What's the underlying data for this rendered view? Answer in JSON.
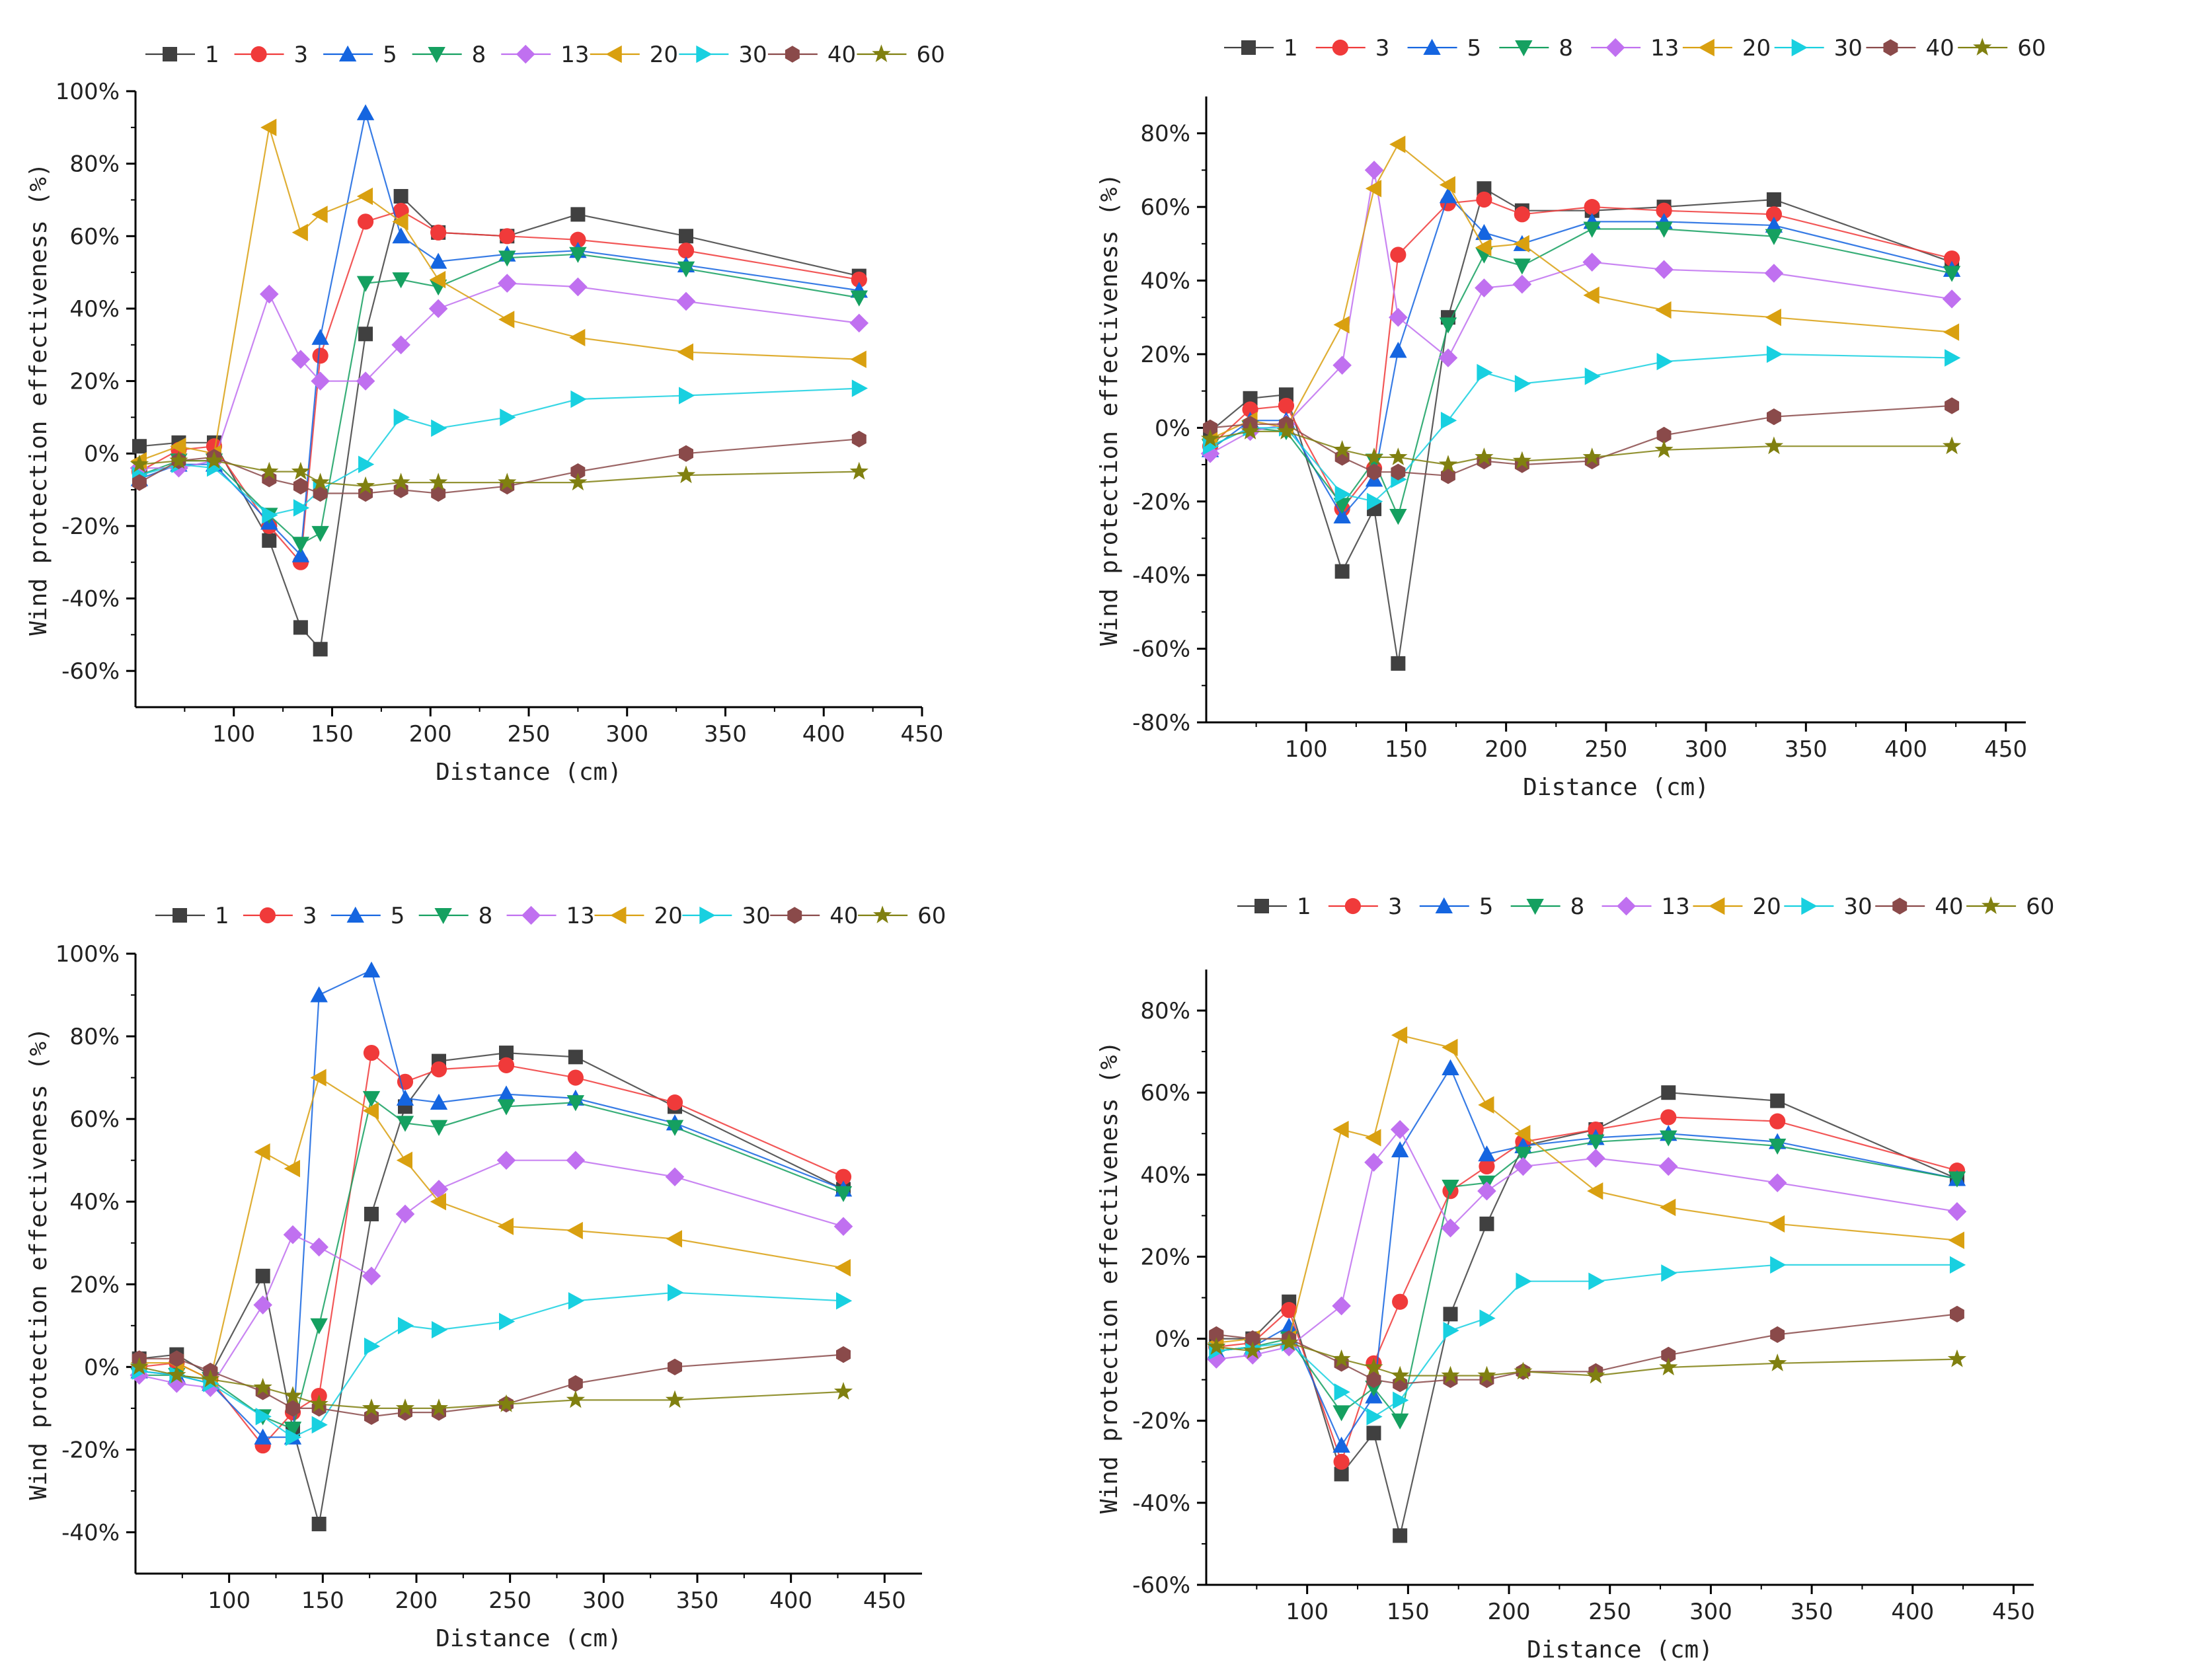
{
  "colors": {
    "1": "#404040",
    "3": "#f03a3a",
    "5": "#1565e0",
    "8": "#15a060",
    "13": "#c070f0",
    "20": "#d9a010",
    "30": "#18d0e0",
    "40": "#8a4a4a",
    "60": "#808010"
  },
  "chart_data": [
    {
      "type": "line",
      "xlabel": "Distance (cm)",
      "ylabel": "Wind protection effectiveness (%)",
      "xlim": [
        50,
        450
      ],
      "ylim": [
        -70,
        100
      ],
      "xticks": [
        100,
        150,
        200,
        250,
        300,
        350,
        400,
        450
      ],
      "yticks": [
        -60,
        -40,
        -20,
        0,
        20,
        40,
        60,
        80,
        100
      ],
      "ytick_labels": [
        "-60%",
        "-40%",
        "-20%",
        "0%",
        "20%",
        "40%",
        "60%",
        "80%",
        "100%"
      ],
      "x": [
        52,
        72,
        90,
        118,
        134,
        144,
        167,
        185,
        204,
        239,
        275,
        330,
        418
      ],
      "series": [
        {
          "name": "1",
          "marker": "square",
          "values": [
            2,
            3,
            3,
            -24,
            -48,
            -54,
            33,
            71,
            61,
            60,
            66,
            60,
            49
          ]
        },
        {
          "name": "3",
          "marker": "circle",
          "values": [
            -5,
            1,
            2,
            -20,
            -30,
            27,
            64,
            67,
            61,
            60,
            59,
            56,
            48
          ]
        },
        {
          "name": "5",
          "marker": "triangle-up",
          "values": [
            -7,
            -3,
            -3,
            -19,
            -28,
            32,
            94,
            60,
            53,
            55,
            56,
            52,
            45
          ]
        },
        {
          "name": "8",
          "marker": "triangle-down",
          "values": [
            -6,
            -2,
            -2,
            -17,
            -25,
            -22,
            47,
            48,
            46,
            54,
            55,
            51,
            43
          ]
        },
        {
          "name": "13",
          "marker": "diamond",
          "values": [
            -4,
            -4,
            -2,
            44,
            26,
            20,
            20,
            30,
            40,
            47,
            46,
            42,
            36
          ]
        },
        {
          "name": "20",
          "marker": "triangle-left",
          "values": [
            -2,
            2,
            0,
            90,
            61,
            66,
            71,
            64,
            48,
            37,
            32,
            28,
            26
          ]
        },
        {
          "name": "30",
          "marker": "triangle-right",
          "values": [
            -6,
            -3,
            -4,
            -17,
            -15,
            -10,
            -3,
            10,
            7,
            10,
            15,
            16,
            18
          ]
        },
        {
          "name": "40",
          "marker": "hexagon",
          "values": [
            -8,
            -2,
            -1,
            -7,
            -9,
            -11,
            -11,
            -10,
            -11,
            -9,
            -5,
            0,
            4
          ]
        },
        {
          "name": "60",
          "marker": "star",
          "values": [
            -3,
            -2,
            -2,
            -5,
            -5,
            -8,
            -9,
            -8,
            -8,
            -8,
            -8,
            -6,
            -5
          ]
        }
      ]
    },
    {
      "type": "line",
      "xlabel": "Distance (cm)",
      "ylabel": "Wind protection effectiveness (%)",
      "xlim": [
        50,
        460
      ],
      "ylim": [
        -80,
        90
      ],
      "xticks": [
        100,
        150,
        200,
        250,
        300,
        350,
        400,
        450
      ],
      "yticks": [
        -80,
        -60,
        -40,
        -20,
        0,
        20,
        40,
        60,
        80
      ],
      "ytick_labels": [
        "-80%",
        "-60%",
        "-40%",
        "-20%",
        "0%",
        "20%",
        "40%",
        "60%",
        "80%"
      ],
      "x": [
        52,
        72,
        90,
        118,
        134,
        146,
        171,
        189,
        208,
        243,
        279,
        334,
        423
      ],
      "series": [
        {
          "name": "1",
          "marker": "square",
          "values": [
            -1,
            8,
            9,
            -39,
            -22,
            -64,
            30,
            65,
            59,
            59,
            60,
            62,
            45
          ]
        },
        {
          "name": "3",
          "marker": "circle",
          "values": [
            -5,
            5,
            6,
            -22,
            -11,
            47,
            61,
            62,
            58,
            60,
            59,
            58,
            46
          ]
        },
        {
          "name": "5",
          "marker": "triangle-up",
          "values": [
            -6,
            2,
            2,
            -24,
            -14,
            21,
            63,
            53,
            50,
            56,
            56,
            55,
            43
          ]
        },
        {
          "name": "8",
          "marker": "triangle-down",
          "values": [
            -5,
            0,
            -1,
            -21,
            -9,
            -24,
            28,
            47,
            44,
            54,
            54,
            52,
            42
          ]
        },
        {
          "name": "13",
          "marker": "diamond",
          "values": [
            -7,
            -1,
            1,
            17,
            70,
            30,
            19,
            38,
            39,
            45,
            43,
            42,
            35
          ]
        },
        {
          "name": "20",
          "marker": "triangle-left",
          "values": [
            -3,
            2,
            0,
            28,
            65,
            77,
            66,
            49,
            50,
            36,
            32,
            30,
            26
          ]
        },
        {
          "name": "30",
          "marker": "triangle-right",
          "values": [
            -5,
            0,
            0,
            -18,
            -20,
            -14,
            2,
            15,
            12,
            14,
            18,
            20,
            19
          ]
        },
        {
          "name": "40",
          "marker": "hexagon",
          "values": [
            0,
            1,
            1,
            -8,
            -12,
            -12,
            -13,
            -9,
            -10,
            -9,
            -2,
            3,
            6
          ]
        },
        {
          "name": "60",
          "marker": "star",
          "values": [
            -3,
            -1,
            -1,
            -6,
            -8,
            -8,
            -10,
            -8,
            -9,
            -8,
            -6,
            -5,
            -5
          ]
        }
      ]
    },
    {
      "type": "line",
      "xlabel": "Distance (cm)",
      "ylabel": "Wind protection effectiveness (%)",
      "xlim": [
        50,
        470
      ],
      "ylim": [
        -50,
        100
      ],
      "xticks": [
        100,
        150,
        200,
        250,
        300,
        350,
        400,
        450
      ],
      "yticks": [
        -40,
        -20,
        0,
        20,
        40,
        60,
        80,
        100
      ],
      "ytick_labels": [
        "-40%",
        "-20%",
        "0%",
        "20%",
        "40%",
        "60%",
        "80%",
        "100%"
      ],
      "x": [
        52,
        72,
        90,
        118,
        134,
        148,
        176,
        194,
        212,
        248,
        285,
        338,
        428
      ],
      "series": [
        {
          "name": "1",
          "marker": "square",
          "values": [
            2,
            3,
            -2,
            22,
            -15,
            -38,
            37,
            63,
            74,
            76,
            75,
            63,
            43
          ]
        },
        {
          "name": "3",
          "marker": "circle",
          "values": [
            0,
            1,
            -3,
            -19,
            -11,
            -7,
            76,
            69,
            72,
            73,
            70,
            64,
            46
          ]
        },
        {
          "name": "5",
          "marker": "triangle-up",
          "values": [
            -1,
            -2,
            -4,
            -17,
            -17,
            90,
            96,
            65,
            64,
            66,
            65,
            59,
            43
          ]
        },
        {
          "name": "8",
          "marker": "triangle-down",
          "values": [
            -2,
            -2,
            -3,
            -12,
            -15,
            10,
            65,
            59,
            58,
            63,
            64,
            58,
            42
          ]
        },
        {
          "name": "13",
          "marker": "diamond",
          "values": [
            -2,
            -4,
            -5,
            15,
            32,
            29,
            22,
            37,
            43,
            50,
            50,
            46,
            34
          ]
        },
        {
          "name": "20",
          "marker": "triangle-left",
          "values": [
            1,
            1,
            -3,
            52,
            48,
            70,
            62,
            50,
            40,
            34,
            33,
            31,
            24
          ]
        },
        {
          "name": "30",
          "marker": "triangle-right",
          "values": [
            -1,
            -2,
            -4,
            -12,
            -17,
            -14,
            5,
            10,
            9,
            11,
            16,
            18,
            16
          ]
        },
        {
          "name": "40",
          "marker": "hexagon",
          "values": [
            2,
            2,
            -1,
            -6,
            -10,
            -10,
            -12,
            -11,
            -11,
            -9,
            -4,
            0,
            3
          ]
        },
        {
          "name": "60",
          "marker": "star",
          "values": [
            0,
            -2,
            -3,
            -5,
            -7,
            -9,
            -10,
            -10,
            -10,
            -9,
            -8,
            -8,
            -6
          ]
        }
      ]
    },
    {
      "type": "line",
      "xlabel": "Distance (cm)",
      "ylabel": "Wind protection effectiveness (%)",
      "xlim": [
        50,
        460
      ],
      "ylim": [
        -60,
        90
      ],
      "xticks": [
        100,
        150,
        200,
        250,
        300,
        350,
        400,
        450
      ],
      "yticks": [
        -60,
        -40,
        -20,
        0,
        20,
        40,
        60,
        80
      ],
      "ytick_labels": [
        "-60%",
        "-40%",
        "-20%",
        "0%",
        "20%",
        "40%",
        "60%",
        "80%"
      ],
      "x": [
        55,
        73,
        91,
        117,
        133,
        146,
        171,
        189,
        207,
        243,
        279,
        333,
        422
      ],
      "series": [
        {
          "name": "1",
          "marker": "square",
          "values": [
            0,
            0,
            9,
            -33,
            -23,
            -48,
            6,
            28,
            47,
            51,
            60,
            58,
            39
          ]
        },
        {
          "name": "3",
          "marker": "circle",
          "values": [
            -2,
            -1,
            7,
            -30,
            -6,
            9,
            36,
            42,
            48,
            51,
            54,
            53,
            41
          ]
        },
        {
          "name": "5",
          "marker": "triangle-up",
          "values": [
            -3,
            -2,
            3,
            -26,
            -14,
            46,
            66,
            45,
            47,
            49,
            50,
            48,
            39
          ]
        },
        {
          "name": "8",
          "marker": "triangle-down",
          "values": [
            -3,
            -2,
            0,
            -18,
            -12,
            -20,
            37,
            38,
            45,
            48,
            49,
            47,
            39
          ]
        },
        {
          "name": "13",
          "marker": "diamond",
          "values": [
            -5,
            -4,
            -2,
            8,
            43,
            51,
            27,
            36,
            42,
            44,
            42,
            38,
            31
          ]
        },
        {
          "name": "20",
          "marker": "triangle-left",
          "values": [
            -1,
            0,
            0,
            51,
            49,
            74,
            71,
            57,
            50,
            36,
            32,
            28,
            24
          ]
        },
        {
          "name": "30",
          "marker": "triangle-right",
          "values": [
            -3,
            -2,
            -1,
            -13,
            -19,
            -15,
            2,
            5,
            14,
            14,
            16,
            18,
            18
          ]
        },
        {
          "name": "40",
          "marker": "hexagon",
          "values": [
            1,
            0,
            0,
            -6,
            -10,
            -11,
            -10,
            -10,
            -8,
            -8,
            -4,
            1,
            6
          ]
        },
        {
          "name": "60",
          "marker": "star",
          "values": [
            -2,
            -3,
            -1,
            -5,
            -7,
            -9,
            -9,
            -9,
            -8,
            -9,
            -7,
            -6,
            -5
          ]
        }
      ]
    }
  ]
}
